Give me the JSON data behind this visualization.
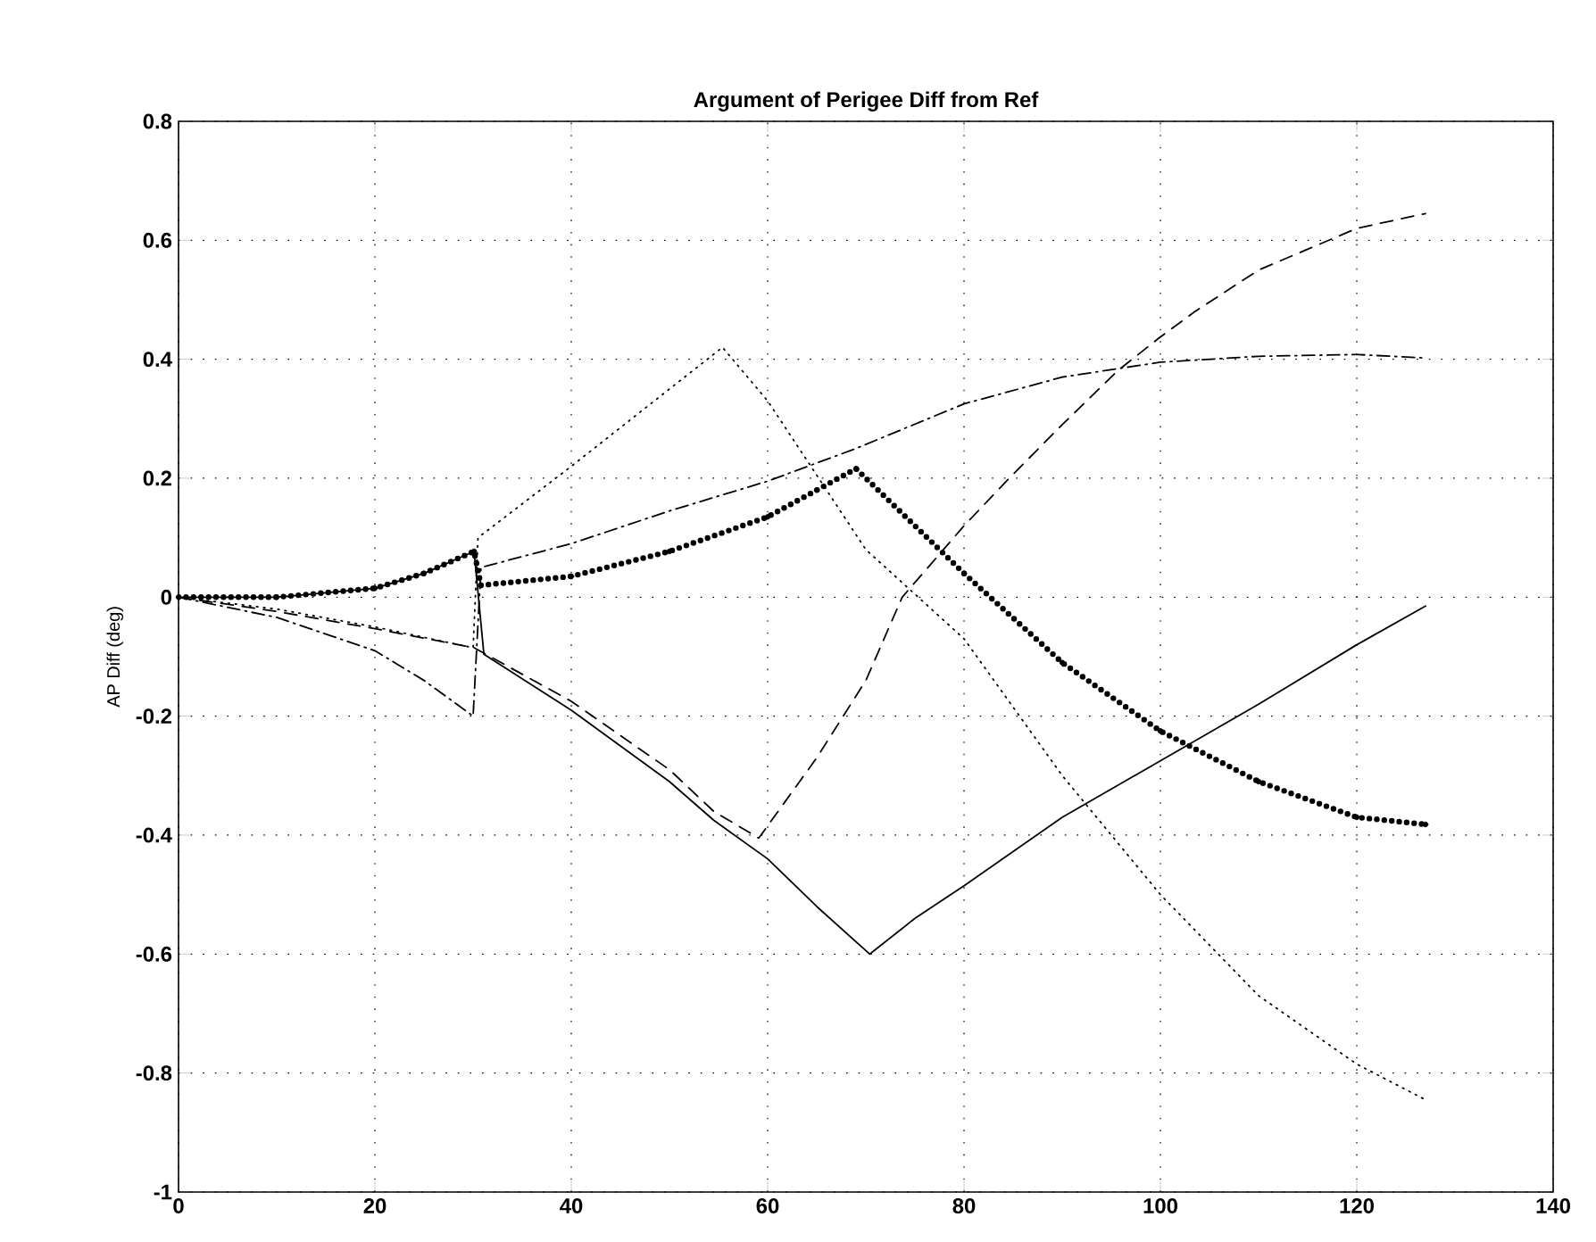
{
  "chart_data": {
    "type": "line",
    "title": "Argument of Perigee Diff from Ref",
    "ylabel": "AP Diff (deg)",
    "xlim": [
      0,
      140
    ],
    "ylim": [
      -1,
      0.8
    ],
    "xticks": [
      0,
      20,
      40,
      60,
      80,
      100,
      120,
      140
    ],
    "yticks": [
      -1,
      -0.8,
      -0.6,
      -0.4,
      -0.2,
      0,
      0.2,
      0.4,
      0.6,
      0.8
    ],
    "grid": true,
    "series": [
      {
        "color": "#000000",
        "line_style": "solid",
        "x": [
          0,
          10,
          20,
          25,
          30.1,
          31.1,
          40,
          50,
          54.5,
          60,
          65,
          70.4,
          75,
          80,
          90,
          100,
          110,
          120,
          127
        ],
        "values": [
          0,
          0,
          0.015,
          0.04,
          0.077,
          -0.096,
          -0.19,
          -0.31,
          -0.375,
          -0.44,
          -0.52,
          -0.6,
          -0.54,
          -0.485,
          -0.37,
          -0.275,
          -0.18,
          -0.08,
          -0.015
        ]
      },
      {
        "color": "#000000",
        "line_style": "dashed",
        "x": [
          0,
          10,
          20,
          30.1,
          40,
          50,
          54.5,
          59.1,
          65,
          70,
          73.7,
          80,
          84.6,
          90,
          95.6,
          99.8,
          103.5,
          110,
          120,
          127
        ],
        "values": [
          0,
          -0.024,
          -0.053,
          -0.085,
          -0.175,
          -0.29,
          -0.36,
          -0.405,
          -0.27,
          -0.14,
          0,
          0.12,
          0.2,
          0.29,
          0.38,
          0.435,
          0.48,
          0.55,
          0.62,
          0.645
        ]
      },
      {
        "color": "#000000",
        "line_style": "dashdot",
        "x": [
          0,
          10,
          20,
          25,
          30,
          30.8,
          40,
          50,
          60,
          69,
          80,
          90,
          100,
          110,
          120,
          127
        ],
        "values": [
          0,
          -0.034,
          -0.09,
          -0.14,
          -0.2,
          0.05,
          0.09,
          0.145,
          0.195,
          0.25,
          0.325,
          0.37,
          0.395,
          0.405,
          0.408,
          0.402
        ]
      },
      {
        "color": "#000000",
        "line_style": "dotted",
        "x": [
          0,
          10,
          20,
          30,
          30.5,
          40,
          50,
          55.4,
          60,
          70,
          80,
          90,
          100,
          110,
          120,
          127
        ],
        "values": [
          0,
          -0.02,
          -0.05,
          -0.085,
          0.1,
          0.22,
          0.35,
          0.42,
          0.33,
          0.08,
          -0.07,
          -0.3,
          -0.5,
          -0.67,
          -0.785,
          -0.845
        ]
      },
      {
        "color": "#000000",
        "line_style": "dotted",
        "marker": "circle",
        "x": [
          0,
          10,
          20,
          25,
          30.1,
          30.8,
          40,
          50,
          60,
          65,
          69,
          80,
          90,
          100,
          110,
          120,
          127
        ],
        "values": [
          0,
          0,
          0.015,
          0.04,
          0.077,
          0.02,
          0.035,
          0.077,
          0.135,
          0.18,
          0.216,
          0.04,
          -0.11,
          -0.225,
          -0.31,
          -0.37,
          -0.382
        ]
      }
    ]
  }
}
